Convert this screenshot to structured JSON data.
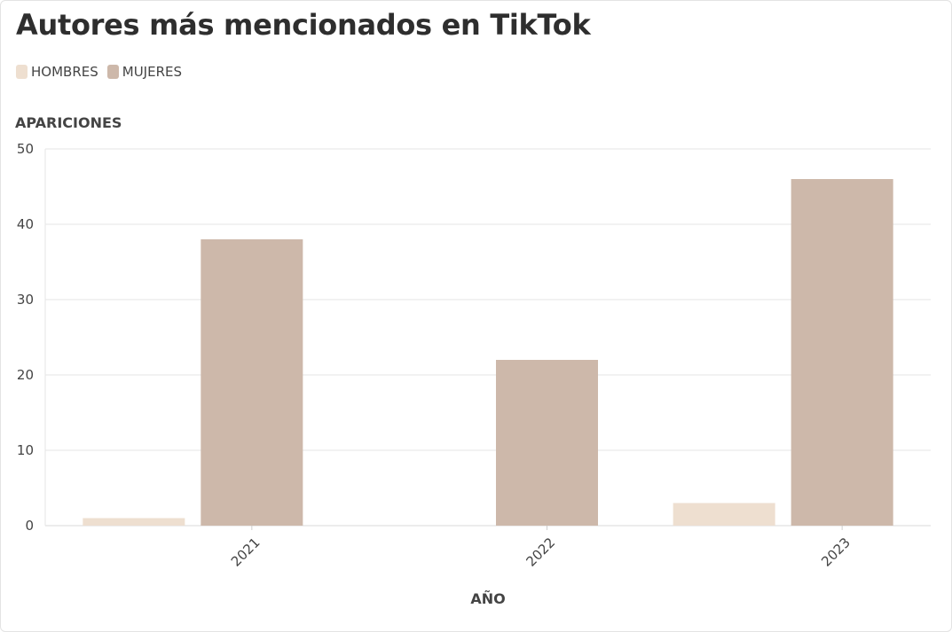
{
  "chart_data": {
    "type": "bar",
    "title": "Autores más mencionados en TikTok",
    "xlabel": "AÑO",
    "ylabel": "APARICIONES",
    "categories": [
      "2021",
      "2022",
      "2023"
    ],
    "series": [
      {
        "name": "HOMBRES",
        "values": [
          1,
          0,
          3
        ],
        "color": "#eedfd0"
      },
      {
        "name": "MUJERES",
        "values": [
          38,
          22,
          46
        ],
        "color": "#cdb8aa"
      }
    ],
    "ylim": [
      0,
      50
    ],
    "yticks": [
      0,
      10,
      20,
      30,
      40,
      50
    ],
    "grid": true,
    "legend_position": "top-left"
  }
}
